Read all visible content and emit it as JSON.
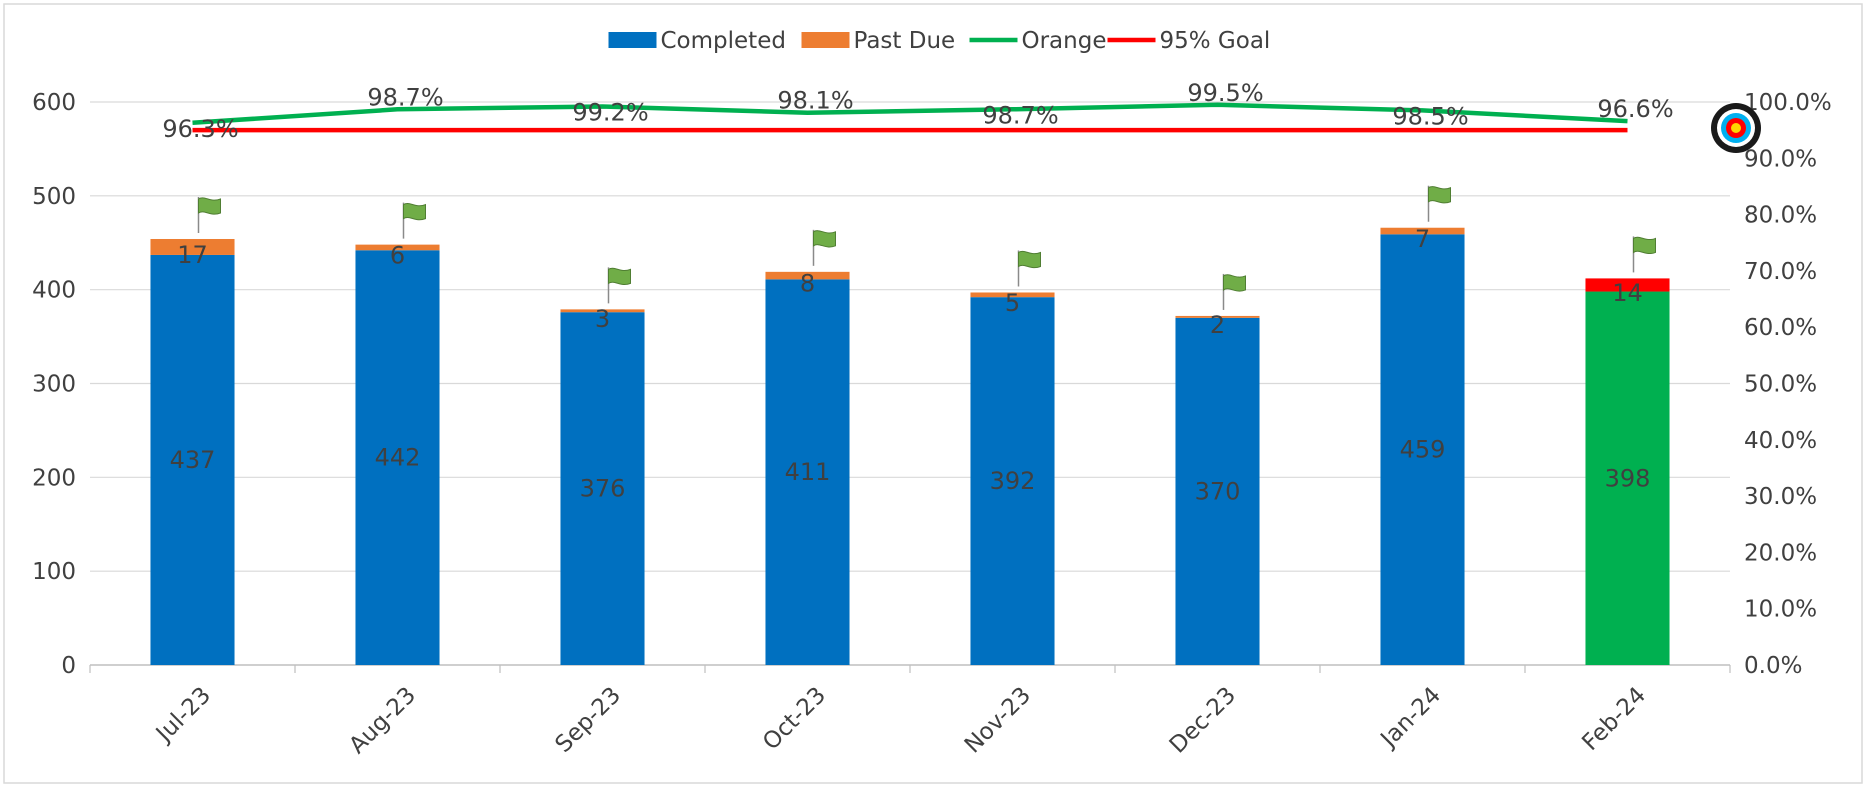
{
  "chart_data": {
    "type": "bar",
    "stacked": true,
    "categories": [
      "Jul-23",
      "Aug-23",
      "Sep-23",
      "Oct-23",
      "Nov-23",
      "Dec-23",
      "Jan-24",
      "Feb-24"
    ],
    "series": [
      {
        "name": "Completed",
        "kind": "bar",
        "axis": "left",
        "color": "#0070C0",
        "values": [
          437,
          442,
          376,
          411,
          392,
          370,
          459,
          398
        ],
        "point_colors": {
          "7": "#00B050"
        }
      },
      {
        "name": "Past Due",
        "kind": "bar",
        "axis": "left",
        "color": "#ED7D31",
        "values": [
          17,
          6,
          3,
          8,
          5,
          2,
          7,
          14
        ],
        "point_colors": {
          "7": "#FF0000"
        }
      },
      {
        "name": "Orange",
        "kind": "line",
        "axis": "right",
        "color": "#00B050",
        "values": [
          96.3,
          98.7,
          99.2,
          98.1,
          98.7,
          99.5,
          98.5,
          96.6
        ],
        "labels": [
          "96.3%",
          "98.7%",
          "99.2%",
          "98.1%",
          "98.7%",
          "99.5%",
          "98.5%",
          "96.6%"
        ]
      },
      {
        "name": "95% Goal",
        "kind": "line",
        "axis": "right",
        "color": "#FF0000",
        "values": [
          95,
          95,
          95,
          95,
          95,
          95,
          95,
          95
        ]
      }
    ],
    "ylim": [
      0,
      600
    ],
    "y_ticks": [
      "0",
      "100",
      "200",
      "300",
      "400",
      "500",
      "600"
    ],
    "y2lim": [
      0,
      100
    ],
    "y2_ticks": [
      "0.0%",
      "10.0%",
      "20.0%",
      "30.0%",
      "40.0%",
      "50.0%",
      "60.0%",
      "70.0%",
      "80.0%",
      "90.0%",
      "100.0%"
    ],
    "grid": true,
    "legend_position": "top-center",
    "icons": {
      "bar_marker": "green-flag-icon",
      "goal_marker": "target-icon"
    }
  }
}
